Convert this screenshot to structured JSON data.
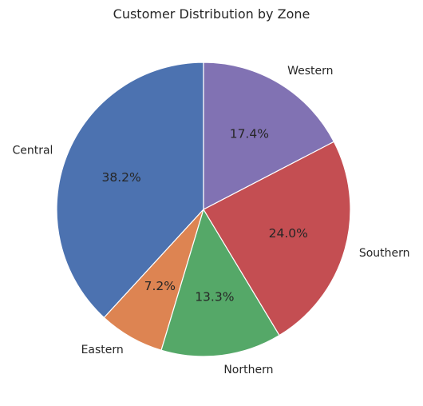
{
  "chart_data": {
    "type": "pie",
    "title": "Customer Distribution by Zone",
    "labels": [
      "Central",
      "Eastern",
      "Northern",
      "Southern",
      "Western"
    ],
    "values": [
      38.2,
      7.2,
      13.3,
      24.0,
      17.4
    ],
    "percent_labels": [
      "38.2%",
      "7.2%",
      "13.3%",
      "24.0%",
      "17.4%"
    ],
    "colors": [
      "#4c72b0",
      "#dd8452",
      "#55a868",
      "#c44e52",
      "#8172b3"
    ],
    "start_angle": 90,
    "direction": "counterclockwise",
    "wedge_edge_color": "#ffffff",
    "legend": "none"
  }
}
